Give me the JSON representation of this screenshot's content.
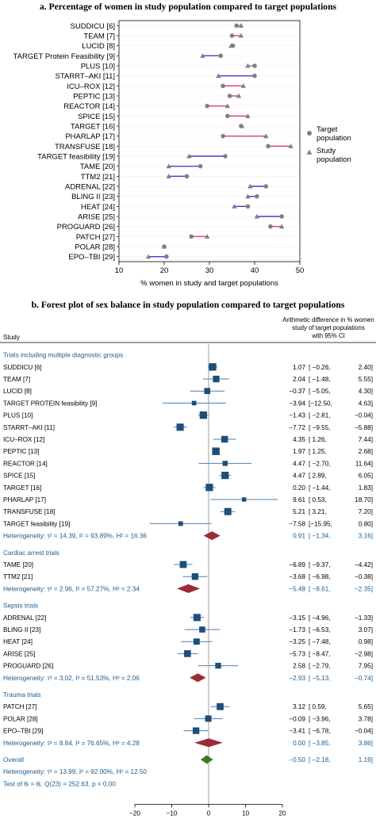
{
  "chart_data": [
    {
      "type": "dot-plot",
      "title": "a. Percentage of women in study population compared to target populations",
      "xlabel": "% women in study and target populations",
      "xlim": [
        10,
        50
      ],
      "xticks": [
        "10",
        "20",
        "30",
        "40",
        "50"
      ],
      "legend": {
        "position": "right",
        "entries": [
          {
            "label": "Target population",
            "marker": "circle",
            "color": "#808080"
          },
          {
            "label": "Study population",
            "marker": "triangle",
            "color": "#808080"
          }
        ]
      },
      "colors": {
        "marker": "#808080",
        "higher": "#e8308a",
        "lower": "#3b3fd0",
        "neutral": "#8c8c8c"
      },
      "studies": [
        {
          "name": "SUDDICU [6]",
          "target": 36.0,
          "study": 37.0
        },
        {
          "name": "TEAM [7]",
          "target": 35.0,
          "study": 37.0
        },
        {
          "name": "LUCID [8]",
          "target": 35.2,
          "study": 34.8
        },
        {
          "name": "TARGET Protein Feasibility [9]",
          "target": 32.5,
          "study": 28.5
        },
        {
          "name": "PLUS [10]",
          "target": 40.0,
          "study": 38.5
        },
        {
          "name": "STARRT–AKI [11]",
          "target": 40.0,
          "study": 32.0
        },
        {
          "name": "ICU–ROX [12]",
          "target": 33.0,
          "study": 37.5
        },
        {
          "name": "PEPTIC [13]",
          "target": 34.5,
          "study": 36.5
        },
        {
          "name": "REACTOR [14]",
          "target": 29.5,
          "study": 34.0
        },
        {
          "name": "SPICE [15]",
          "target": 34.0,
          "study": 38.5
        },
        {
          "name": "TARGET [16]",
          "target": 37.0,
          "study": 37.2
        },
        {
          "name": "PHARLAP [17]",
          "target": 33.0,
          "study": 42.5
        },
        {
          "name": "TRANSFUSE [18]",
          "target": 43.0,
          "study": 48.0
        },
        {
          "name": "TARGET feasibility [19]",
          "target": 33.5,
          "study": 25.5
        },
        {
          "name": "TAME [20]",
          "target": 28.0,
          "study": 21.0
        },
        {
          "name": "TTM2 [21]",
          "target": 25.0,
          "study": 21.0
        },
        {
          "name": "ADRENAL [22]",
          "target": 42.5,
          "study": 39.0
        },
        {
          "name": "BLING II [23]",
          "target": 40.5,
          "study": 38.5
        },
        {
          "name": "HEAT [24]",
          "target": 38.5,
          "study": 35.5
        },
        {
          "name": "ARISE [25]",
          "target": 46.0,
          "study": 40.5
        },
        {
          "name": "PROGUARD [26]",
          "target": 43.5,
          "study": 46.0
        },
        {
          "name": "PATCH [27]",
          "target": 26.0,
          "study": 29.5
        },
        {
          "name": "POLAR [28]",
          "target": 20.0,
          "study": 20.0
        },
        {
          "name": "EPO–TBI [29]",
          "target": 20.5,
          "study": 16.5
        }
      ]
    },
    {
      "type": "forest",
      "title": "b. Forest plot of sex balance in study population compared to target populations",
      "col_study": "Study",
      "col_effect": [
        "Arithmetic difference in % women",
        "study of target populations",
        "with 95% CI"
      ],
      "xlim": [
        -20,
        20
      ],
      "xticks": [
        "−20",
        "−10",
        "0",
        "10",
        "20"
      ],
      "xlabel_left": [
        "% women lower in study",
        "of target population"
      ],
      "xlabel_arrow": "<-->",
      "xlabel_right": [
        "% women higher in study",
        "of target population"
      ],
      "colors": {
        "group": "#1e5b8c",
        "square": "#1e4e7a",
        "ci": "#4a7fb0",
        "diamond": "#9b2c35",
        "overall": "#3f7a1e"
      },
      "rows": [
        {
          "kind": "group",
          "label": "Trials including multiple diagnostic groups"
        },
        {
          "kind": "study",
          "label": "SUDDICU [6]",
          "est": 1.07,
          "lo": -0.26,
          "hi": 2.4,
          "text": [
            "1.07",
            "[ −0.26,",
            "2.40]"
          ]
        },
        {
          "kind": "study",
          "label": "TEAM [7]",
          "est": 2.04,
          "lo": -1.48,
          "hi": 5.55,
          "text": [
            "2.04",
            "[ −1.48,",
            "5.55]"
          ]
        },
        {
          "kind": "study",
          "label": "LUCID [8]",
          "est": -0.37,
          "lo": -5.05,
          "hi": 4.3,
          "text": [
            "−0.37",
            "[ −5.05,",
            "4.30]"
          ]
        },
        {
          "kind": "study",
          "label": "TARGET PROTEIN feasibility [9]",
          "est": -3.94,
          "lo": -12.5,
          "hi": 4.63,
          "text": [
            "−3.94",
            "[−12.50,",
            "4.63]"
          ]
        },
        {
          "kind": "study",
          "label": "PLUS [10]",
          "est": -1.43,
          "lo": -2.81,
          "hi": -0.04,
          "text": [
            "−1.43",
            "[ −2.81,",
            "−0.04]"
          ]
        },
        {
          "kind": "study",
          "label": "STARRT–AKI [11]",
          "est": -7.72,
          "lo": -9.55,
          "hi": -5.88,
          "text": [
            "−7.72",
            "[ −9.55,",
            "−5.88]"
          ]
        },
        {
          "kind": "study",
          "label": "ICU–ROX [12]",
          "est": 4.35,
          "lo": 1.26,
          "hi": 7.44,
          "text": [
            "4.35",
            "[  1.26,",
            "7.44]"
          ]
        },
        {
          "kind": "study",
          "label": "PEPTIC [13]",
          "est": 1.97,
          "lo": 1.25,
          "hi": 2.68,
          "text": [
            "1.97",
            "[  1.25,",
            "2.68]"
          ]
        },
        {
          "kind": "study",
          "label": "REACTOR [14]",
          "est": 4.47,
          "lo": -2.7,
          "hi": 11.64,
          "text": [
            "4.47",
            "[ −2.70,",
            "11.64]"
          ]
        },
        {
          "kind": "study",
          "label": "SPICE [15]",
          "est": 4.47,
          "lo": 2.89,
          "hi": 6.05,
          "text": [
            "4.47",
            "[  2.89,",
            "6.05]"
          ]
        },
        {
          "kind": "study",
          "label": "TARGET [16]",
          "est": 0.2,
          "lo": -1.44,
          "hi": 1.83,
          "text": [
            "0.20",
            "[ −1.44,",
            "1.83]"
          ]
        },
        {
          "kind": "study",
          "label": "PHARLAP [17]",
          "est": 9.61,
          "lo": 0.53,
          "hi": 18.7,
          "text": [
            "9.61",
            "[  0.53,",
            "18.70]"
          ]
        },
        {
          "kind": "study",
          "label": "TRANSFUSE [18]",
          "est": 5.21,
          "lo": 3.21,
          "hi": 7.2,
          "text": [
            "5.21",
            "[  3.21,",
            "7.20]"
          ]
        },
        {
          "kind": "study",
          "label": "TARGET feasibility [19]",
          "est": -7.58,
          "lo": -15.95,
          "hi": 0.8,
          "text": [
            "−7.58",
            "[−15.95,",
            "0.80]"
          ]
        },
        {
          "kind": "pooled",
          "label": "Heterogeneity: τ² = 14.39, I² = 93.89%, H² = 16.36",
          "est": 0.91,
          "lo": -1.34,
          "hi": 3.16,
          "text": [
            "0.91",
            "[ −1.34,",
            "3.16]"
          ]
        },
        {
          "kind": "gap"
        },
        {
          "kind": "group",
          "label": "Cardiac arrest trials"
        },
        {
          "kind": "study",
          "label": "TAME [20]",
          "est": -6.89,
          "lo": -9.37,
          "hi": -4.42,
          "text": [
            "−6.89",
            "[ −9.37,",
            "−4.42]"
          ]
        },
        {
          "kind": "study",
          "label": "TTM2 [21]",
          "est": -3.68,
          "lo": -6.98,
          "hi": -0.38,
          "text": [
            "−3.68",
            "[ −6.98,",
            "−0.38]"
          ]
        },
        {
          "kind": "pooled",
          "label": "Heterogeneity: τ² = 2.96, I² = 57.27%, H² = 2.34",
          "est": -5.48,
          "lo": -8.61,
          "hi": -2.35,
          "text": [
            "−5.48",
            "[ −8.61,",
            "−2.35]"
          ]
        },
        {
          "kind": "gap"
        },
        {
          "kind": "group",
          "label": "Sepsis trials"
        },
        {
          "kind": "study",
          "label": "ADRENAL [22]",
          "est": -3.15,
          "lo": -4.96,
          "hi": -1.33,
          "text": [
            "−3.15",
            "[ −4.96,",
            "−1.33]"
          ]
        },
        {
          "kind": "study",
          "label": "BLING II [23]",
          "est": -1.73,
          "lo": -6.53,
          "hi": 3.07,
          "text": [
            "−1.73",
            "[ −6.53,",
            "3.07]"
          ]
        },
        {
          "kind": "study",
          "label": "HEAT [24]",
          "est": -3.25,
          "lo": -7.48,
          "hi": 0.98,
          "text": [
            "−3.25",
            "[ −7.48,",
            "0.98]"
          ]
        },
        {
          "kind": "study",
          "label": "ARISE [25]",
          "est": -5.73,
          "lo": -8.47,
          "hi": -2.98,
          "text": [
            "−5.73",
            "[ −8.47,",
            "−2.98]"
          ]
        },
        {
          "kind": "study",
          "label": "PROGUARD [26]",
          "est": 2.58,
          "lo": -2.79,
          "hi": 7.95,
          "text": [
            "2.58",
            "[ −2.79,",
            "7.95]"
          ]
        },
        {
          "kind": "pooled",
          "label": "Heterogeneity: τ² = 3.02, I² = 51.53%, H² = 2.06",
          "est": -2.93,
          "lo": -5.13,
          "hi": -0.74,
          "text": [
            "−2.93",
            "[ −5.13,",
            "−0.74]"
          ]
        },
        {
          "kind": "gap"
        },
        {
          "kind": "group",
          "label": "Trauma trials"
        },
        {
          "kind": "study",
          "label": "PATCH [27]",
          "est": 3.12,
          "lo": 0.59,
          "hi": 5.65,
          "text": [
            "3.12",
            "[  0.59,",
            "5.65]"
          ]
        },
        {
          "kind": "study",
          "label": "POLAR [28]",
          "est": -0.09,
          "lo": -3.96,
          "hi": 3.78,
          "text": [
            "−0.09",
            "[ −3.96,",
            "3.78]"
          ]
        },
        {
          "kind": "study",
          "label": "EPO–TBI [29]",
          "est": -3.41,
          "lo": -6.78,
          "hi": -0.04,
          "text": [
            "−3.41",
            "[ −6.78,",
            "−0.04]"
          ]
        },
        {
          "kind": "pooled",
          "label": "Heterogeneity: τ² = 8.84, I² = 76.65%, H² = 4.28",
          "est": 0.0,
          "lo": -3.85,
          "hi": 3.86,
          "text": [
            "0.00",
            "[ −3.85,",
            "3.86]"
          ]
        },
        {
          "kind": "gap"
        },
        {
          "kind": "overall",
          "label": "Overall",
          "est": -0.5,
          "lo": -2.18,
          "hi": 1.19,
          "text": [
            "−0.50",
            "[ −2.18,",
            "1.19]"
          ]
        },
        {
          "kind": "note",
          "label": "Heterogeneity: τ² = 13.99, I² = 92.00%, H² = 12.50"
        },
        {
          "kind": "note",
          "label": "Test of θᵢ = θⱼ: Q(23) = 252.63, p = 0.00"
        }
      ]
    }
  ]
}
